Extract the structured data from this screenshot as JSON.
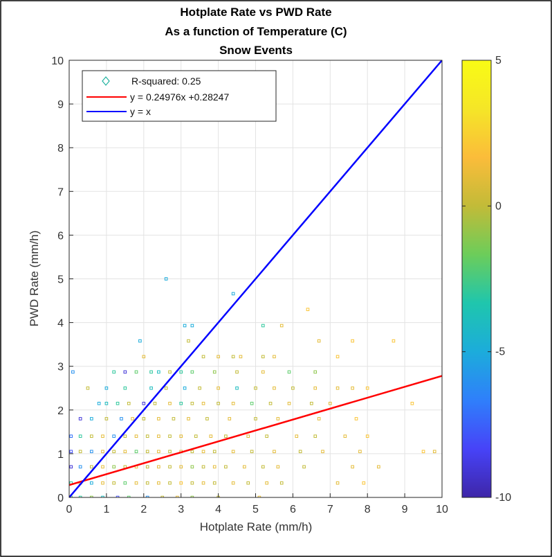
{
  "chart_data": {
    "type": "scatter",
    "title": [
      "Hotplate Rate vs PWD Rate",
      "As a function of Temperature (C)",
      "Snow Events"
    ],
    "xlabel": "Hotplate Rate (mm/h)",
    "ylabel": "PWD Rate (mm/h)",
    "xlim": [
      0,
      10
    ],
    "ylim": [
      0,
      10
    ],
    "xticks": [
      "0",
      "1",
      "2",
      "3",
      "4",
      "5",
      "6",
      "7",
      "8",
      "9",
      "10"
    ],
    "yticks": [
      "0",
      "1",
      "2",
      "3",
      "4",
      "5",
      "6",
      "7",
      "8",
      "9",
      "10"
    ],
    "grid": true,
    "legend": {
      "placement": "top-left",
      "entries": [
        {
          "label": "R-squared: 0.25",
          "marker": "diamond",
          "color": "#20b2a0"
        },
        {
          "label": "y = 0.24976x +0.28247",
          "marker": "line",
          "color": "#ff0000"
        },
        {
          "label": "y = x",
          "marker": "line",
          "color": "#0000ff"
        }
      ]
    },
    "fit_line": {
      "slope": 0.24976,
      "intercept": 0.28247,
      "color": "#ff0000"
    },
    "identity_line": {
      "slope": 1,
      "intercept": 0,
      "color": "#0000ff"
    },
    "colorbar": {
      "range": [
        -10,
        5
      ],
      "ticks": [
        "5",
        "0",
        "-5",
        "-10"
      ],
      "colormap": [
        "#3e26a8",
        "#4743f8",
        "#2f7ffb",
        "#1cacdb",
        "#1fc6ad",
        "#6ccd5a",
        "#c2bb38",
        "#fbbc3a",
        "#f5e627",
        "#f9fb15"
      ]
    },
    "series": [
      {
        "name": "",
        "points": [
          [
            0.05,
            0.0,
            -2
          ],
          [
            0.3,
            0.0,
            -3
          ],
          [
            0.6,
            0.0,
            -1
          ],
          [
            0.9,
            0.0,
            -4
          ],
          [
            1.3,
            0.0,
            -8
          ],
          [
            1.6,
            0.0,
            -2
          ],
          [
            2.1,
            0.0,
            -6
          ],
          [
            2.5,
            0.0,
            0
          ],
          [
            2.9,
            0.0,
            1
          ],
          [
            3.3,
            0.0,
            -1
          ],
          [
            4.0,
            0.0,
            0
          ],
          [
            5.1,
            0.0,
            1
          ],
          [
            0.05,
            0.33,
            -3
          ],
          [
            0.3,
            0.33,
            0
          ],
          [
            0.6,
            0.33,
            -5
          ],
          [
            0.9,
            0.33,
            1
          ],
          [
            1.2,
            0.33,
            0
          ],
          [
            1.5,
            0.33,
            -2
          ],
          [
            1.8,
            0.33,
            1
          ],
          [
            2.1,
            0.33,
            0
          ],
          [
            2.4,
            0.33,
            1
          ],
          [
            2.7,
            0.33,
            0
          ],
          [
            3.0,
            0.33,
            2
          ],
          [
            3.3,
            0.33,
            0
          ],
          [
            3.6,
            0.33,
            1
          ],
          [
            3.9,
            0.33,
            0
          ],
          [
            4.4,
            0.33,
            1
          ],
          [
            4.8,
            0.33,
            0
          ],
          [
            5.3,
            0.33,
            1
          ],
          [
            5.7,
            0.33,
            0
          ],
          [
            7.2,
            0.33,
            1
          ],
          [
            7.9,
            0.33,
            2
          ],
          [
            0.05,
            0.7,
            -9
          ],
          [
            0.3,
            0.7,
            -6
          ],
          [
            0.6,
            0.7,
            0
          ],
          [
            0.9,
            0.7,
            1
          ],
          [
            1.2,
            0.7,
            -1
          ],
          [
            1.5,
            0.7,
            0
          ],
          [
            1.8,
            0.7,
            1
          ],
          [
            2.1,
            0.7,
            0
          ],
          [
            2.4,
            0.7,
            1
          ],
          [
            2.7,
            0.7,
            0
          ],
          [
            3.0,
            0.7,
            1
          ],
          [
            3.3,
            0.7,
            -1
          ],
          [
            3.6,
            0.7,
            0
          ],
          [
            3.9,
            0.7,
            1
          ],
          [
            4.2,
            0.7,
            0
          ],
          [
            4.7,
            0.7,
            1
          ],
          [
            5.2,
            0.7,
            0
          ],
          [
            5.6,
            0.7,
            1
          ],
          [
            6.3,
            0.7,
            0
          ],
          [
            7.6,
            0.7,
            1
          ],
          [
            8.3,
            0.7,
            1
          ],
          [
            0.05,
            1.05,
            -8
          ],
          [
            0.3,
            1.05,
            0
          ],
          [
            0.6,
            1.05,
            -6
          ],
          [
            0.9,
            1.05,
            1
          ],
          [
            1.2,
            1.05,
            0
          ],
          [
            1.5,
            1.05,
            1
          ],
          [
            1.8,
            1.05,
            -2
          ],
          [
            2.1,
            1.05,
            0
          ],
          [
            2.4,
            1.05,
            1
          ],
          [
            2.7,
            1.05,
            0
          ],
          [
            3.0,
            1.05,
            1
          ],
          [
            3.3,
            1.05,
            0
          ],
          [
            3.6,
            1.05,
            1
          ],
          [
            3.9,
            1.05,
            0
          ],
          [
            4.4,
            1.05,
            1
          ],
          [
            4.9,
            1.05,
            0
          ],
          [
            5.5,
            1.05,
            1
          ],
          [
            6.2,
            1.05,
            0
          ],
          [
            6.8,
            1.05,
            1
          ],
          [
            7.8,
            1.05,
            1
          ],
          [
            9.5,
            1.05,
            2
          ],
          [
            9.8,
            1.05,
            1
          ],
          [
            0.05,
            1.4,
            -7
          ],
          [
            0.3,
            1.4,
            -3
          ],
          [
            0.6,
            1.4,
            0
          ],
          [
            0.9,
            1.4,
            1
          ],
          [
            1.2,
            1.4,
            -6
          ],
          [
            1.5,
            1.4,
            0
          ],
          [
            1.8,
            1.4,
            1
          ],
          [
            2.1,
            1.4,
            0
          ],
          [
            2.4,
            1.4,
            1
          ],
          [
            2.7,
            1.4,
            0
          ],
          [
            3.0,
            1.4,
            1
          ],
          [
            3.4,
            1.4,
            0
          ],
          [
            3.8,
            1.4,
            1
          ],
          [
            4.2,
            1.4,
            0
          ],
          [
            4.8,
            1.4,
            1
          ],
          [
            5.3,
            1.4,
            0
          ],
          [
            6.1,
            1.4,
            1
          ],
          [
            6.6,
            1.4,
            0
          ],
          [
            7.4,
            1.4,
            1
          ],
          [
            8.0,
            1.4,
            2
          ],
          [
            0.3,
            1.8,
            -9
          ],
          [
            0.6,
            1.8,
            -5
          ],
          [
            1.0,
            1.8,
            0
          ],
          [
            1.4,
            1.8,
            -6
          ],
          [
            1.7,
            1.8,
            1
          ],
          [
            2.0,
            1.8,
            0
          ],
          [
            2.4,
            1.8,
            1
          ],
          [
            2.8,
            1.8,
            0
          ],
          [
            3.2,
            1.8,
            1
          ],
          [
            3.7,
            1.8,
            0
          ],
          [
            4.3,
            1.8,
            1
          ],
          [
            5.0,
            1.8,
            0
          ],
          [
            5.6,
            1.8,
            1
          ],
          [
            6.7,
            1.8,
            1
          ],
          [
            7.7,
            1.8,
            2
          ],
          [
            0.8,
            2.15,
            -5
          ],
          [
            1.0,
            2.15,
            -4
          ],
          [
            1.3,
            2.15,
            -3
          ],
          [
            1.6,
            2.15,
            0
          ],
          [
            2.0,
            2.15,
            -9
          ],
          [
            2.3,
            2.15,
            0
          ],
          [
            2.7,
            2.15,
            1
          ],
          [
            3.0,
            2.15,
            -3
          ],
          [
            3.3,
            2.15,
            0
          ],
          [
            3.6,
            2.15,
            1
          ],
          [
            4.0,
            2.15,
            0
          ],
          [
            4.4,
            2.15,
            1
          ],
          [
            4.9,
            2.15,
            -2
          ],
          [
            5.4,
            2.15,
            0
          ],
          [
            5.9,
            2.15,
            1
          ],
          [
            6.5,
            2.15,
            0
          ],
          [
            7.0,
            2.15,
            1
          ],
          [
            9.2,
            2.15,
            2
          ],
          [
            0.5,
            2.5,
            0
          ],
          [
            1.0,
            2.5,
            -5
          ],
          [
            1.5,
            2.5,
            -3
          ],
          [
            2.2,
            2.5,
            -4
          ],
          [
            2.6,
            2.5,
            0
          ],
          [
            3.1,
            2.5,
            -5
          ],
          [
            3.5,
            2.5,
            0
          ],
          [
            4.0,
            2.5,
            1
          ],
          [
            4.5,
            2.5,
            -4
          ],
          [
            5.0,
            2.5,
            0
          ],
          [
            5.5,
            2.5,
            1
          ],
          [
            6.0,
            2.5,
            0
          ],
          [
            6.6,
            2.5,
            1
          ],
          [
            7.2,
            2.5,
            1
          ],
          [
            7.6,
            2.5,
            1
          ],
          [
            8.0,
            2.5,
            2
          ],
          [
            0.1,
            2.87,
            -6
          ],
          [
            1.2,
            2.87,
            -3
          ],
          [
            1.5,
            2.87,
            -9
          ],
          [
            1.8,
            2.87,
            -2
          ],
          [
            2.2,
            2.87,
            -3
          ],
          [
            2.4,
            2.87,
            -4
          ],
          [
            2.7,
            2.87,
            0
          ],
          [
            3.0,
            2.87,
            -3
          ],
          [
            3.3,
            2.87,
            -2
          ],
          [
            3.9,
            2.87,
            -1
          ],
          [
            4.5,
            2.87,
            0
          ],
          [
            5.2,
            2.87,
            1
          ],
          [
            5.9,
            2.87,
            -2
          ],
          [
            6.6,
            2.87,
            -1
          ],
          [
            2.0,
            3.22,
            1
          ],
          [
            3.6,
            3.22,
            0
          ],
          [
            4.0,
            3.22,
            1
          ],
          [
            4.4,
            3.22,
            0
          ],
          [
            4.6,
            3.22,
            1
          ],
          [
            5.2,
            3.22,
            0
          ],
          [
            5.5,
            3.22,
            1
          ],
          [
            7.2,
            3.22,
            2
          ],
          [
            1.9,
            3.58,
            -5
          ],
          [
            3.2,
            3.58,
            0
          ],
          [
            6.7,
            3.58,
            1
          ],
          [
            7.6,
            3.58,
            2
          ],
          [
            8.7,
            3.58,
            2
          ],
          [
            3.1,
            3.93,
            -5
          ],
          [
            3.3,
            3.93,
            -5
          ],
          [
            5.2,
            3.93,
            -3
          ],
          [
            5.7,
            3.93,
            1
          ],
          [
            6.4,
            4.3,
            2
          ],
          [
            4.4,
            4.66,
            -5
          ],
          [
            2.6,
            5.0,
            -5
          ]
        ]
      }
    ]
  }
}
